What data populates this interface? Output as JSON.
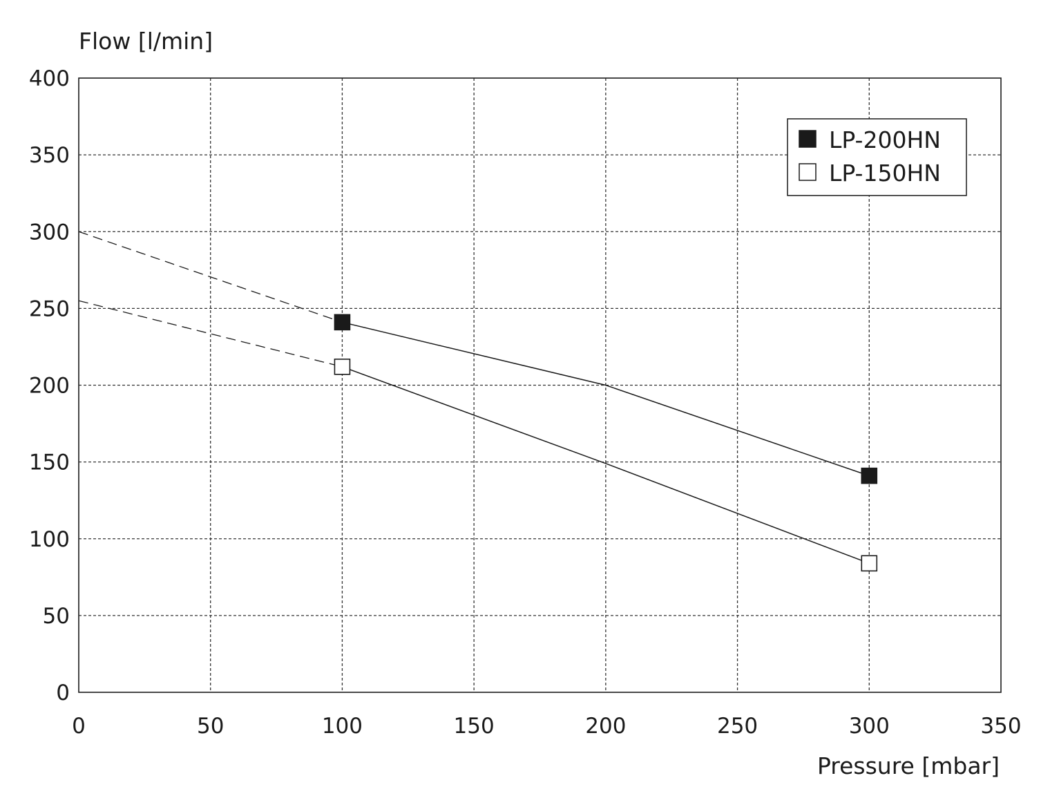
{
  "chart_data": {
    "type": "line",
    "ylabel": "Flow [l/min]",
    "xlabel": "Pressure [mbar]",
    "xlim": [
      0,
      350
    ],
    "ylim": [
      0,
      400
    ],
    "xticks": [
      "0",
      "50",
      "100",
      "150",
      "200",
      "250",
      "300",
      "350"
    ],
    "yticks": [
      "0",
      "50",
      "100",
      "150",
      "200",
      "250",
      "300",
      "350",
      "400"
    ],
    "grid": true,
    "legend_position": "top-right",
    "series": [
      {
        "name": "LP-200HN",
        "marker": "filled-square",
        "color": "#1a1a1a",
        "points": [
          [
            100,
            241
          ],
          [
            200,
            200
          ],
          [
            300,
            141
          ]
        ],
        "marked_x": [
          100,
          300
        ],
        "extrapolated": [
          [
            0,
            300
          ],
          [
            100,
            241
          ]
        ]
      },
      {
        "name": "LP-150HN",
        "marker": "open-square",
        "color": "#ffffff",
        "points": [
          [
            100,
            212
          ],
          [
            200,
            149
          ],
          [
            300,
            84
          ]
        ],
        "marked_x": [
          100,
          300
        ],
        "extrapolated": [
          [
            0,
            255
          ],
          [
            100,
            212
          ]
        ]
      }
    ]
  }
}
